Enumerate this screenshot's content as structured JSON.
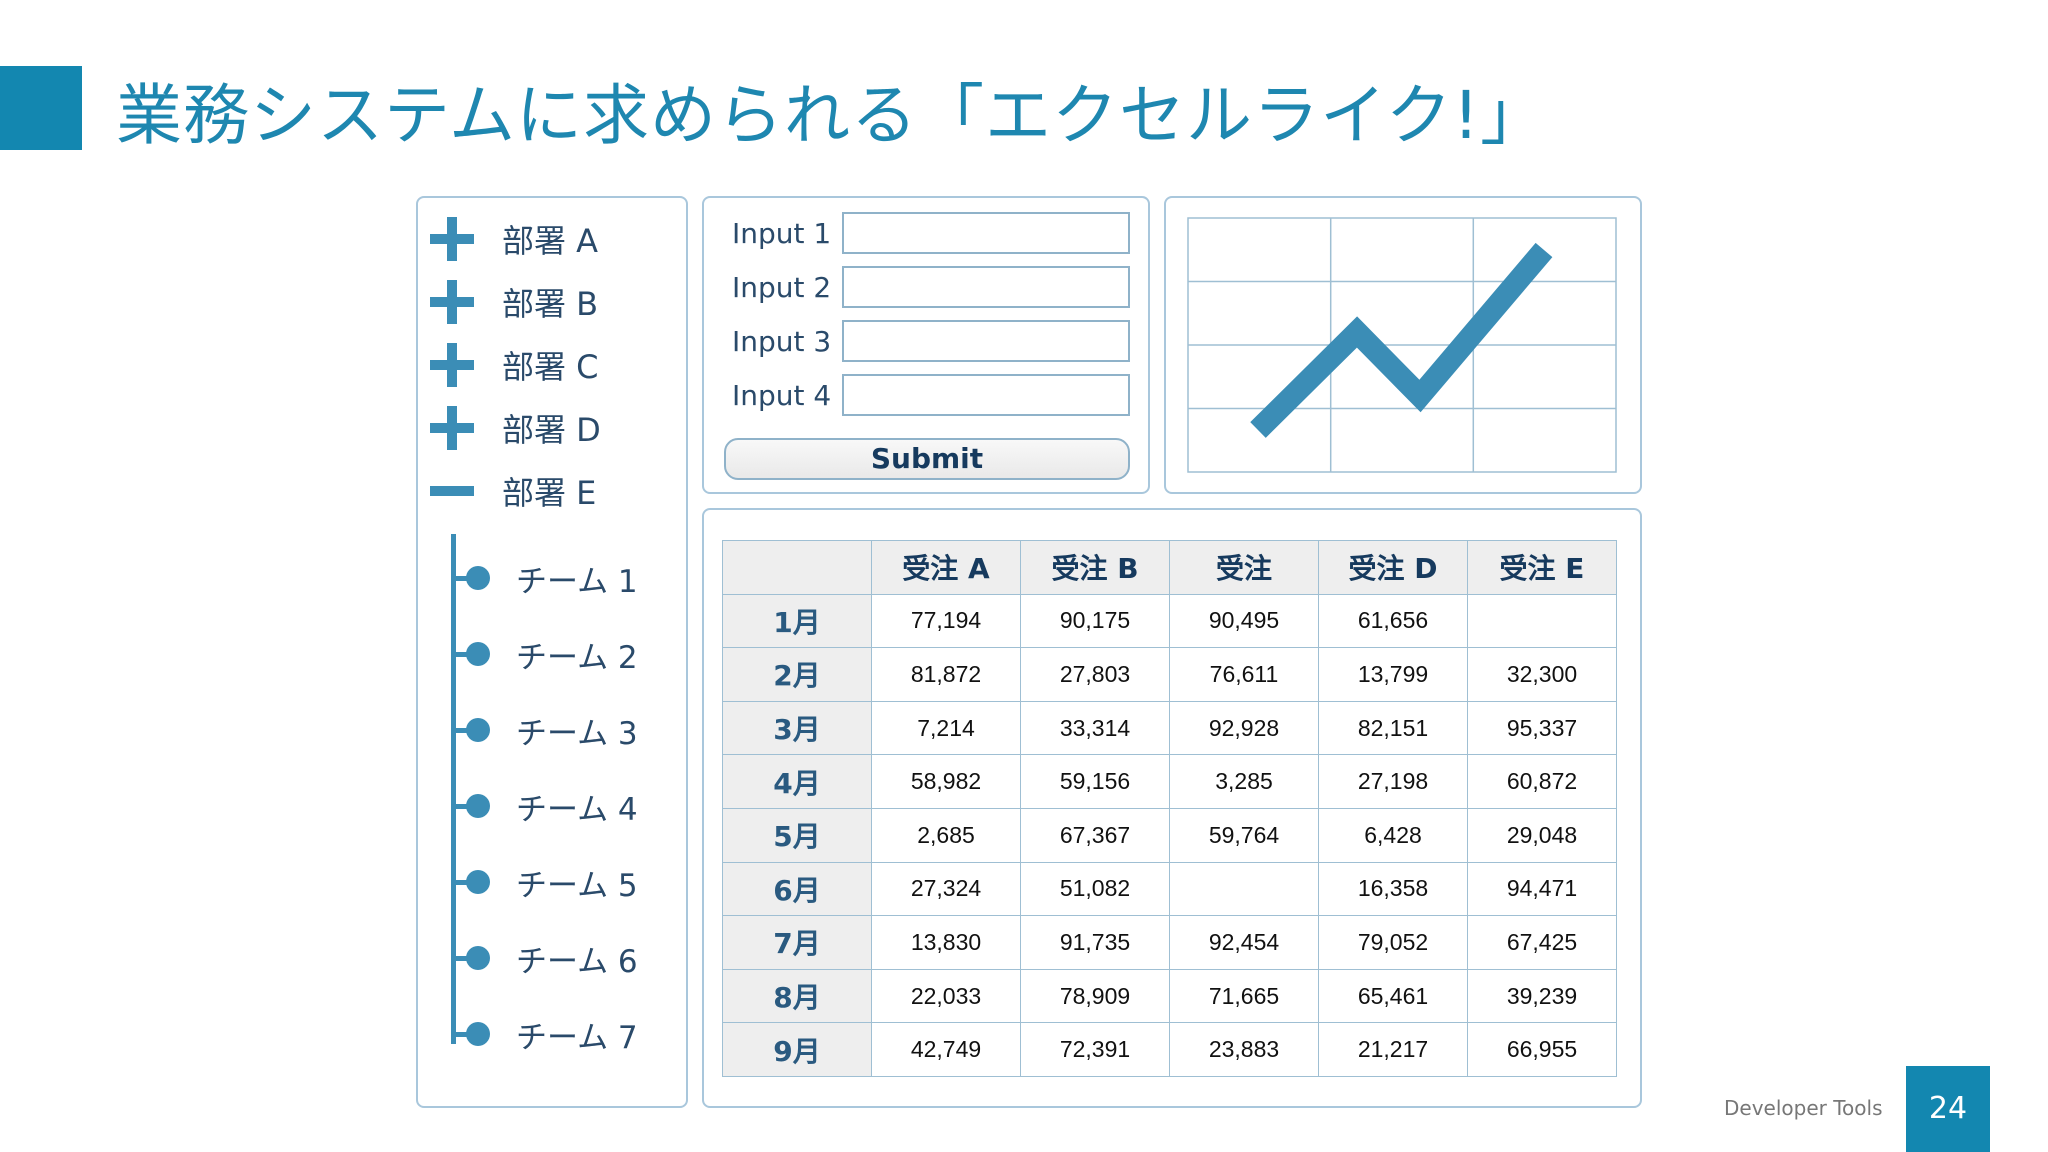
{
  "title": "業務システムに求められる「エクセルライク!」",
  "departments": [
    {
      "label": "部署 A",
      "state": "collapsed"
    },
    {
      "label": "部署 B",
      "state": "collapsed"
    },
    {
      "label": "部署 C",
      "state": "collapsed"
    },
    {
      "label": "部署 D",
      "state": "collapsed"
    },
    {
      "label": "部署 E",
      "state": "expanded"
    }
  ],
  "teams": [
    "チーム 1",
    "チーム 2",
    "チーム 3",
    "チーム 4",
    "チーム 5",
    "チーム 6",
    "チーム 7"
  ],
  "form": {
    "labels": [
      "Input 1",
      "Input 2",
      "Input 3",
      "Input 4"
    ],
    "values": [
      "",
      "",
      "",
      ""
    ],
    "submit_label": "Submit"
  },
  "chart": {
    "line_color": "#3b8db6",
    "grid_color": "#9fbfd3"
  },
  "table": {
    "headers": [
      "",
      "受注 A",
      "受注 B",
      "受注",
      "受注 D",
      "受注 E"
    ],
    "rows": [
      [
        "1月",
        "77,194",
        "90,175",
        "90,495",
        "61,656",
        ""
      ],
      [
        "2月",
        "81,872",
        "27,803",
        "76,611",
        "13,799",
        "32,300"
      ],
      [
        "3月",
        "7,214",
        "33,314",
        "92,928",
        "82,151",
        "95,337"
      ],
      [
        "4月",
        "58,982",
        "59,156",
        "3,285",
        "27,198",
        "60,872"
      ],
      [
        "5月",
        "2,685",
        "67,367",
        "59,764",
        "6,428",
        "29,048"
      ],
      [
        "6月",
        "27,324",
        "51,082",
        "",
        "16,358",
        "94,471"
      ],
      [
        "7月",
        "13,830",
        "91,735",
        "92,454",
        "79,052",
        "67,425"
      ],
      [
        "8月",
        "22,033",
        "78,909",
        "71,665",
        "65,461",
        "39,239"
      ],
      [
        "9月",
        "42,749",
        "72,391",
        "23,883",
        "21,217",
        "66,955"
      ]
    ]
  },
  "footer": {
    "label": "Developer Tools",
    "page_number": "24"
  },
  "colors": {
    "accent": "#1387b0",
    "border": "#a9c7dc"
  }
}
